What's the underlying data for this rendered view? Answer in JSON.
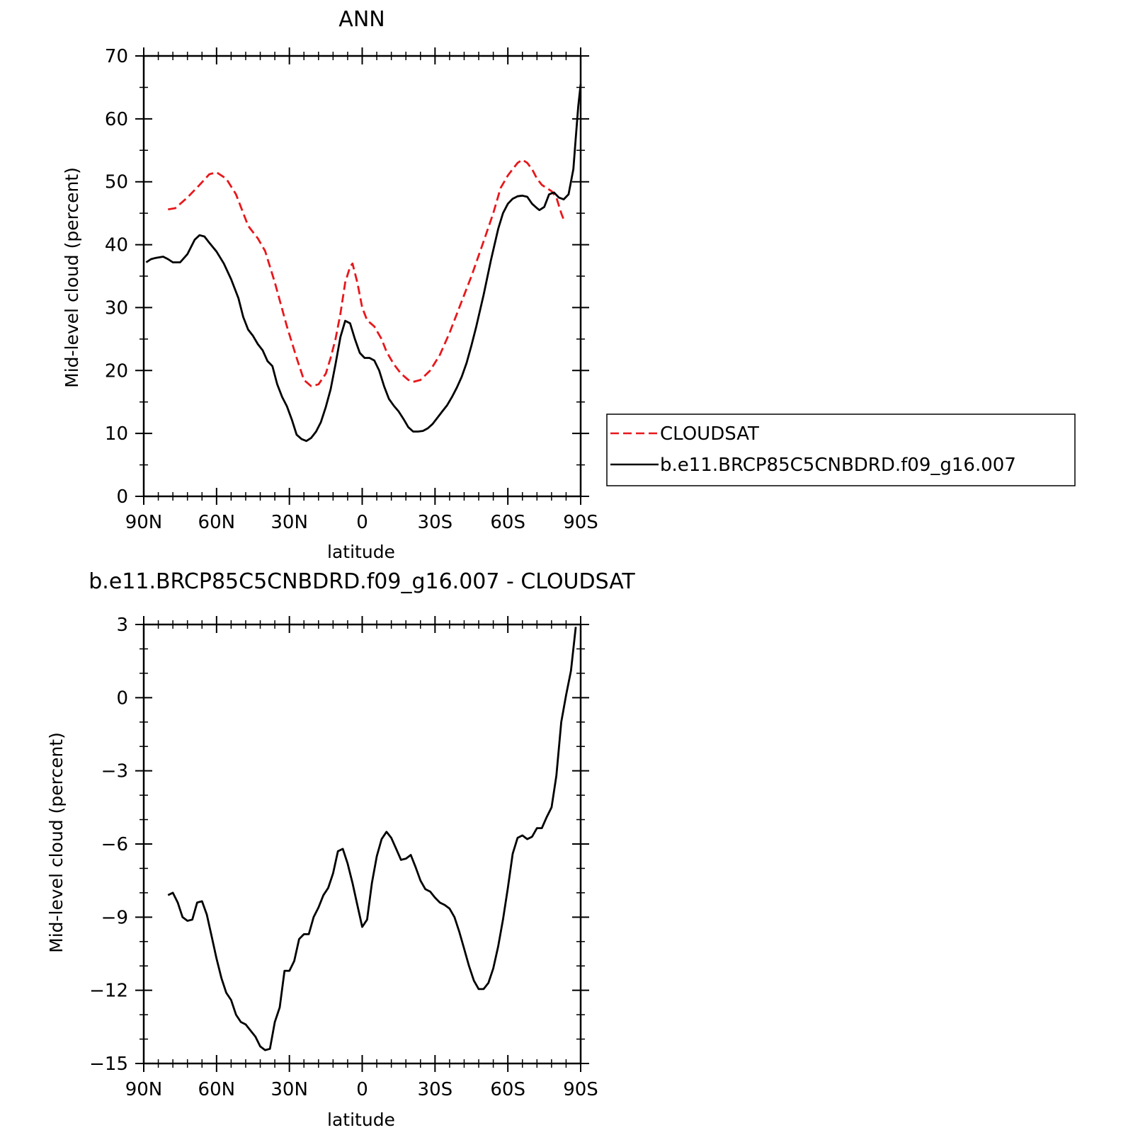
{
  "chart_data": [
    {
      "type": "line",
      "title": "ANN",
      "xlabel": "latitude",
      "ylabel": "Mid-level cloud (percent)",
      "xlim": [
        90,
        -90
      ],
      "ylim": [
        0,
        70
      ],
      "x_ticks": [
        90,
        60,
        30,
        0,
        -30,
        -60,
        -90
      ],
      "x_tick_labels": [
        "90N",
        "60N",
        "30N",
        "0",
        "30S",
        "60S",
        "90S"
      ],
      "y_ticks": [
        0,
        10,
        20,
        30,
        40,
        50,
        60,
        70
      ],
      "y_tick_labels": [
        "0",
        "10",
        "20",
        "30",
        "40",
        "50",
        "60",
        "70"
      ],
      "grid": false,
      "legend_position": "right",
      "series": [
        {
          "name": "CLOUDSAT",
          "color": "#e8171b",
          "style": "dashed",
          "points": [
            [
              80,
              45.6
            ],
            [
              77,
              45.8
            ],
            [
              72,
              47.5
            ],
            [
              67,
              49.5
            ],
            [
              63,
              51.2
            ],
            [
              60,
              51.5
            ],
            [
              56,
              50.5
            ],
            [
              52,
              48
            ],
            [
              47,
              43
            ],
            [
              43,
              41
            ],
            [
              40,
              39
            ],
            [
              36,
              34
            ],
            [
              31,
              27
            ],
            [
              27,
              22
            ],
            [
              24,
              18.5
            ],
            [
              21,
              17.5
            ],
            [
              18,
              17.8
            ],
            [
              15,
              19.5
            ],
            [
              13,
              22
            ],
            [
              11,
              25
            ],
            [
              9,
              29
            ],
            [
              7,
              34
            ],
            [
              5,
              36.5
            ],
            [
              4,
              37
            ],
            [
              2,
              34
            ],
            [
              0,
              30
            ],
            [
              -2,
              28
            ],
            [
              -5,
              27
            ],
            [
              -8,
              25
            ],
            [
              -10,
              23
            ],
            [
              -13,
              21
            ],
            [
              -16,
              19.5
            ],
            [
              -19,
              18.5
            ],
            [
              -21,
              18.2
            ],
            [
              -24,
              18.5
            ],
            [
              -28,
              20
            ],
            [
              -32,
              22.5
            ],
            [
              -36,
              26
            ],
            [
              -40,
              30
            ],
            [
              -45,
              35
            ],
            [
              -50,
              40.5
            ],
            [
              -54,
              45
            ],
            [
              -57,
              49
            ],
            [
              -60,
              51
            ],
            [
              -62,
              52
            ],
            [
              -64,
              53
            ],
            [
              -66,
              53.5
            ],
            [
              -68,
              53
            ],
            [
              -70,
              52
            ],
            [
              -72,
              50.5
            ],
            [
              -74,
              49.5
            ],
            [
              -76,
              49
            ],
            [
              -78,
              48.5
            ],
            [
              -80,
              47.5
            ],
            [
              -82,
              45
            ],
            [
              -83,
              44
            ]
          ]
        },
        {
          "name": "b.e11.BRCP85C5CNBDRD.f09_g16.007",
          "color": "#000000",
          "style": "solid",
          "points": [
            [
              89,
              37.2
            ],
            [
              87,
              37.7
            ],
            [
              85,
              37.9
            ],
            [
              82,
              38.1
            ],
            [
              80,
              37.7
            ],
            [
              78,
              37.2
            ],
            [
              75,
              37.2
            ],
            [
              72,
              38.5
            ],
            [
              69,
              40.8
            ],
            [
              67,
              41.5
            ],
            [
              65,
              41.3
            ],
            [
              63,
              40.3
            ],
            [
              60,
              38.9
            ],
            [
              57,
              37
            ],
            [
              54,
              34.5
            ],
            [
              51,
              31.5
            ],
            [
              49,
              28.5
            ],
            [
              47,
              26.5
            ],
            [
              45,
              25.5
            ],
            [
              43,
              24.2
            ],
            [
              41,
              23.2
            ],
            [
              39,
              21.5
            ],
            [
              37,
              20.7
            ],
            [
              35,
              17.8
            ],
            [
              33,
              15.8
            ],
            [
              31,
              14.3
            ],
            [
              29,
              12.2
            ],
            [
              27,
              9.8
            ],
            [
              25,
              9.1
            ],
            [
              23,
              8.8
            ],
            [
              21,
              9.3
            ],
            [
              19,
              10.3
            ],
            [
              17,
              11.8
            ],
            [
              15,
              14.2
            ],
            [
              13,
              17
            ],
            [
              11,
              21
            ],
            [
              9,
              25.3
            ],
            [
              7,
              27.9
            ],
            [
              5,
              27.5
            ],
            [
              3,
              25
            ],
            [
              1,
              22.8
            ],
            [
              -1,
              22
            ],
            [
              -3,
              22
            ],
            [
              -5,
              21.6
            ],
            [
              -7,
              20
            ],
            [
              -9,
              17.5
            ],
            [
              -11,
              15.5
            ],
            [
              -13,
              14.4
            ],
            [
              -15,
              13.5
            ],
            [
              -17,
              12.3
            ],
            [
              -19,
              11
            ],
            [
              -21,
              10.3
            ],
            [
              -23,
              10.3
            ],
            [
              -25,
              10.4
            ],
            [
              -27,
              10.8
            ],
            [
              -29,
              11.5
            ],
            [
              -31,
              12.5
            ],
            [
              -33,
              13.5
            ],
            [
              -35,
              14.5
            ],
            [
              -37,
              15.8
            ],
            [
              -39,
              17.3
            ],
            [
              -41,
              19
            ],
            [
              -43,
              21.2
            ],
            [
              -45,
              24
            ],
            [
              -47,
              27
            ],
            [
              -50,
              32
            ],
            [
              -53,
              37.5
            ],
            [
              -56,
              42.5
            ],
            [
              -58,
              45
            ],
            [
              -60,
              46.5
            ],
            [
              -62,
              47.3
            ],
            [
              -64,
              47.7
            ],
            [
              -66,
              47.8
            ],
            [
              -68,
              47.6
            ],
            [
              -70,
              46.5
            ],
            [
              -72,
              45.8
            ],
            [
              -73,
              45.5
            ],
            [
              -75,
              46
            ],
            [
              -77,
              48
            ],
            [
              -79,
              48.3
            ],
            [
              -81,
              47.5
            ],
            [
              -83,
              47.2
            ],
            [
              -85,
              48
            ],
            [
              -87,
              52
            ],
            [
              -88,
              57
            ],
            [
              -89,
              62
            ],
            [
              -90,
              65.5
            ]
          ]
        }
      ]
    },
    {
      "type": "line",
      "title": "b.e11.BRCP85C5CNBDRD.f09_g16.007 - CLOUDSAT",
      "xlabel": "latitude",
      "ylabel": "Mid-level cloud (percent)",
      "xlim": [
        90,
        -90
      ],
      "ylim": [
        -15,
        3
      ],
      "x_ticks": [
        90,
        60,
        30,
        0,
        -30,
        -60,
        -90
      ],
      "x_tick_labels": [
        "90N",
        "60N",
        "30N",
        "0",
        "30S",
        "60S",
        "90S"
      ],
      "y_ticks": [
        -15,
        -12,
        -9,
        -6,
        -3,
        0,
        3
      ],
      "y_tick_labels": [
        "−15",
        "−12",
        "−9",
        "−6",
        "−3",
        "0",
        "3"
      ],
      "grid": false,
      "series": [
        {
          "color": "#000000",
          "style": "solid",
          "points": [
            [
              80,
              -8.1
            ],
            [
              78,
              -8
            ],
            [
              76,
              -8.4
            ],
            [
              74,
              -9
            ],
            [
              72,
              -9.15
            ],
            [
              70,
              -9.1
            ],
            [
              68,
              -8.4
            ],
            [
              66,
              -8.35
            ],
            [
              64,
              -8.9
            ],
            [
              62,
              -9.8
            ],
            [
              60,
              -10.7
            ],
            [
              58,
              -11.5
            ],
            [
              56,
              -12.1
            ],
            [
              54,
              -12.4
            ],
            [
              52,
              -13
            ],
            [
              50,
              -13.3
            ],
            [
              48,
              -13.4
            ],
            [
              46,
              -13.65
            ],
            [
              44,
              -13.9
            ],
            [
              42,
              -14.3
            ],
            [
              40,
              -14.45
            ],
            [
              38,
              -14.4
            ],
            [
              36,
              -13.3
            ],
            [
              34,
              -12.7
            ],
            [
              32,
              -11.2
            ],
            [
              30,
              -11.2
            ],
            [
              28,
              -10.8
            ],
            [
              26,
              -9.9
            ],
            [
              24,
              -9.7
            ],
            [
              22,
              -9.7
            ],
            [
              20,
              -9
            ],
            [
              18,
              -8.6
            ],
            [
              16,
              -8.1
            ],
            [
              14,
              -7.8
            ],
            [
              12,
              -7.2
            ],
            [
              10,
              -6.3
            ],
            [
              8,
              -6.2
            ],
            [
              6,
              -6.8
            ],
            [
              4,
              -7.6
            ],
            [
              2,
              -8.5
            ],
            [
              0,
              -9.4
            ],
            [
              -2,
              -9.1
            ],
            [
              -4,
              -7.6
            ],
            [
              -6,
              -6.5
            ],
            [
              -8,
              -5.8
            ],
            [
              -10,
              -5.5
            ],
            [
              -12,
              -5.75
            ],
            [
              -14,
              -6.2
            ],
            [
              -16,
              -6.65
            ],
            [
              -18,
              -6.6
            ],
            [
              -20,
              -6.45
            ],
            [
              -22,
              -6.95
            ],
            [
              -24,
              -7.5
            ],
            [
              -26,
              -7.85
            ],
            [
              -28,
              -7.95
            ],
            [
              -30,
              -8.2
            ],
            [
              -32,
              -8.4
            ],
            [
              -34,
              -8.5
            ],
            [
              -36,
              -8.65
            ],
            [
              -38,
              -9
            ],
            [
              -40,
              -9.6
            ],
            [
              -42,
              -10.3
            ],
            [
              -44,
              -11
            ],
            [
              -46,
              -11.6
            ],
            [
              -48,
              -11.95
            ],
            [
              -50,
              -11.95
            ],
            [
              -52,
              -11.7
            ],
            [
              -54,
              -11.1
            ],
            [
              -56,
              -10.2
            ],
            [
              -58,
              -9.1
            ],
            [
              -60,
              -7.8
            ],
            [
              -62,
              -6.4
            ],
            [
              -64,
              -5.75
            ],
            [
              -66,
              -5.65
            ],
            [
              -68,
              -5.8
            ],
            [
              -70,
              -5.7
            ],
            [
              -72,
              -5.35
            ],
            [
              -74,
              -5.35
            ],
            [
              -76,
              -4.9
            ],
            [
              -78,
              -4.5
            ],
            [
              -80,
              -3.2
            ],
            [
              -82,
              -1
            ],
            [
              -84,
              0.1
            ],
            [
              -86,
              1.1
            ],
            [
              -88,
              2.9
            ]
          ]
        }
      ]
    }
  ]
}
